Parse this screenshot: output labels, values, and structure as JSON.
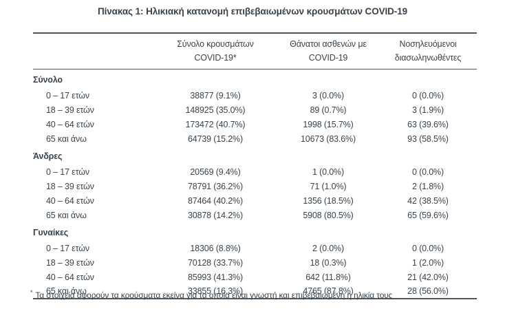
{
  "title": "Πίνακας 1: Ηλικιακή κατανομή επιβεβαιωμένων κρουσμάτων COVID-19",
  "colors": {
    "ink": "#39434b",
    "rule": "#4d565c",
    "background": "#ffffff"
  },
  "headers": [
    {
      "line1": "Σύνολο κρουσμάτων",
      "line2": "COVID-19*"
    },
    {
      "line1": "Θάνατοι ασθενών με",
      "line2": "COVID-19"
    },
    {
      "line1": "Νοσηλευόμενοι",
      "line2": "διασωληνωθέντες"
    }
  ],
  "sections": [
    {
      "label": "Σύνολο",
      "rows": [
        {
          "age": "0 – 17 ετών",
          "cases": "38877 (9.1%)",
          "deaths": "3 (0.0%)",
          "intubated": "0 (0.0%)"
        },
        {
          "age": "18 – 39 ετών",
          "cases": "148925 (35.0%)",
          "deaths": "89 (0.7%)",
          "intubated": "3 (1.9%)"
        },
        {
          "age": "40 – 64 ετών",
          "cases": "173472 (40.7%)",
          "deaths": "1998 (15.7%)",
          "intubated": "63 (39.6%)"
        },
        {
          "age": "65 και άνω",
          "cases": "64739 (15.2%)",
          "deaths": "10673 (83.6%)",
          "intubated": "93 (58.5%)"
        }
      ]
    },
    {
      "label": "Άνδρες",
      "rows": [
        {
          "age": "0 – 17 ετών",
          "cases": "20569 (9.4%)",
          "deaths": "1 (0.0%)",
          "intubated": "0 (0.0%)"
        },
        {
          "age": "18 – 39 ετών",
          "cases": "78791 (36.2%)",
          "deaths": "71 (1.0%)",
          "intubated": "2 (1.8%)"
        },
        {
          "age": "40 – 64 ετών",
          "cases": "87464 (40.2%)",
          "deaths": "1356 (18.5%)",
          "intubated": "42 (38.5%)"
        },
        {
          "age": "65 και άνω",
          "cases": "30878 (14.2%)",
          "deaths": "5908 (80.5%)",
          "intubated": "65 (59.6%)"
        }
      ]
    },
    {
      "label": "Γυναίκες",
      "rows": [
        {
          "age": "0 – 17 ετών",
          "cases": "18306 (8.8%)",
          "deaths": "2 (0.0%)",
          "intubated": "0 (0.0%)"
        },
        {
          "age": "18 – 39 ετών",
          "cases": "70128 (33.7%)",
          "deaths": "18 (0.3%)",
          "intubated": "1 (2.0%)"
        },
        {
          "age": "40 – 64 ετών",
          "cases": "85993 (41.3%)",
          "deaths": "642 (11.8%)",
          "intubated": "21 (42.0%)"
        },
        {
          "age": "65 και άνω",
          "cases": "33855 (16.3%)",
          "deaths": "4765 (87.8%)",
          "intubated": "28 (56.0%)"
        }
      ]
    }
  ],
  "footnote": {
    "marker": "*",
    "text": "Τα στοιχεία αφορούν τα κρούσματα εκείνα για τα οποία είναι γνωστή και επιβεβαιωμένη η ηλικία τους"
  }
}
